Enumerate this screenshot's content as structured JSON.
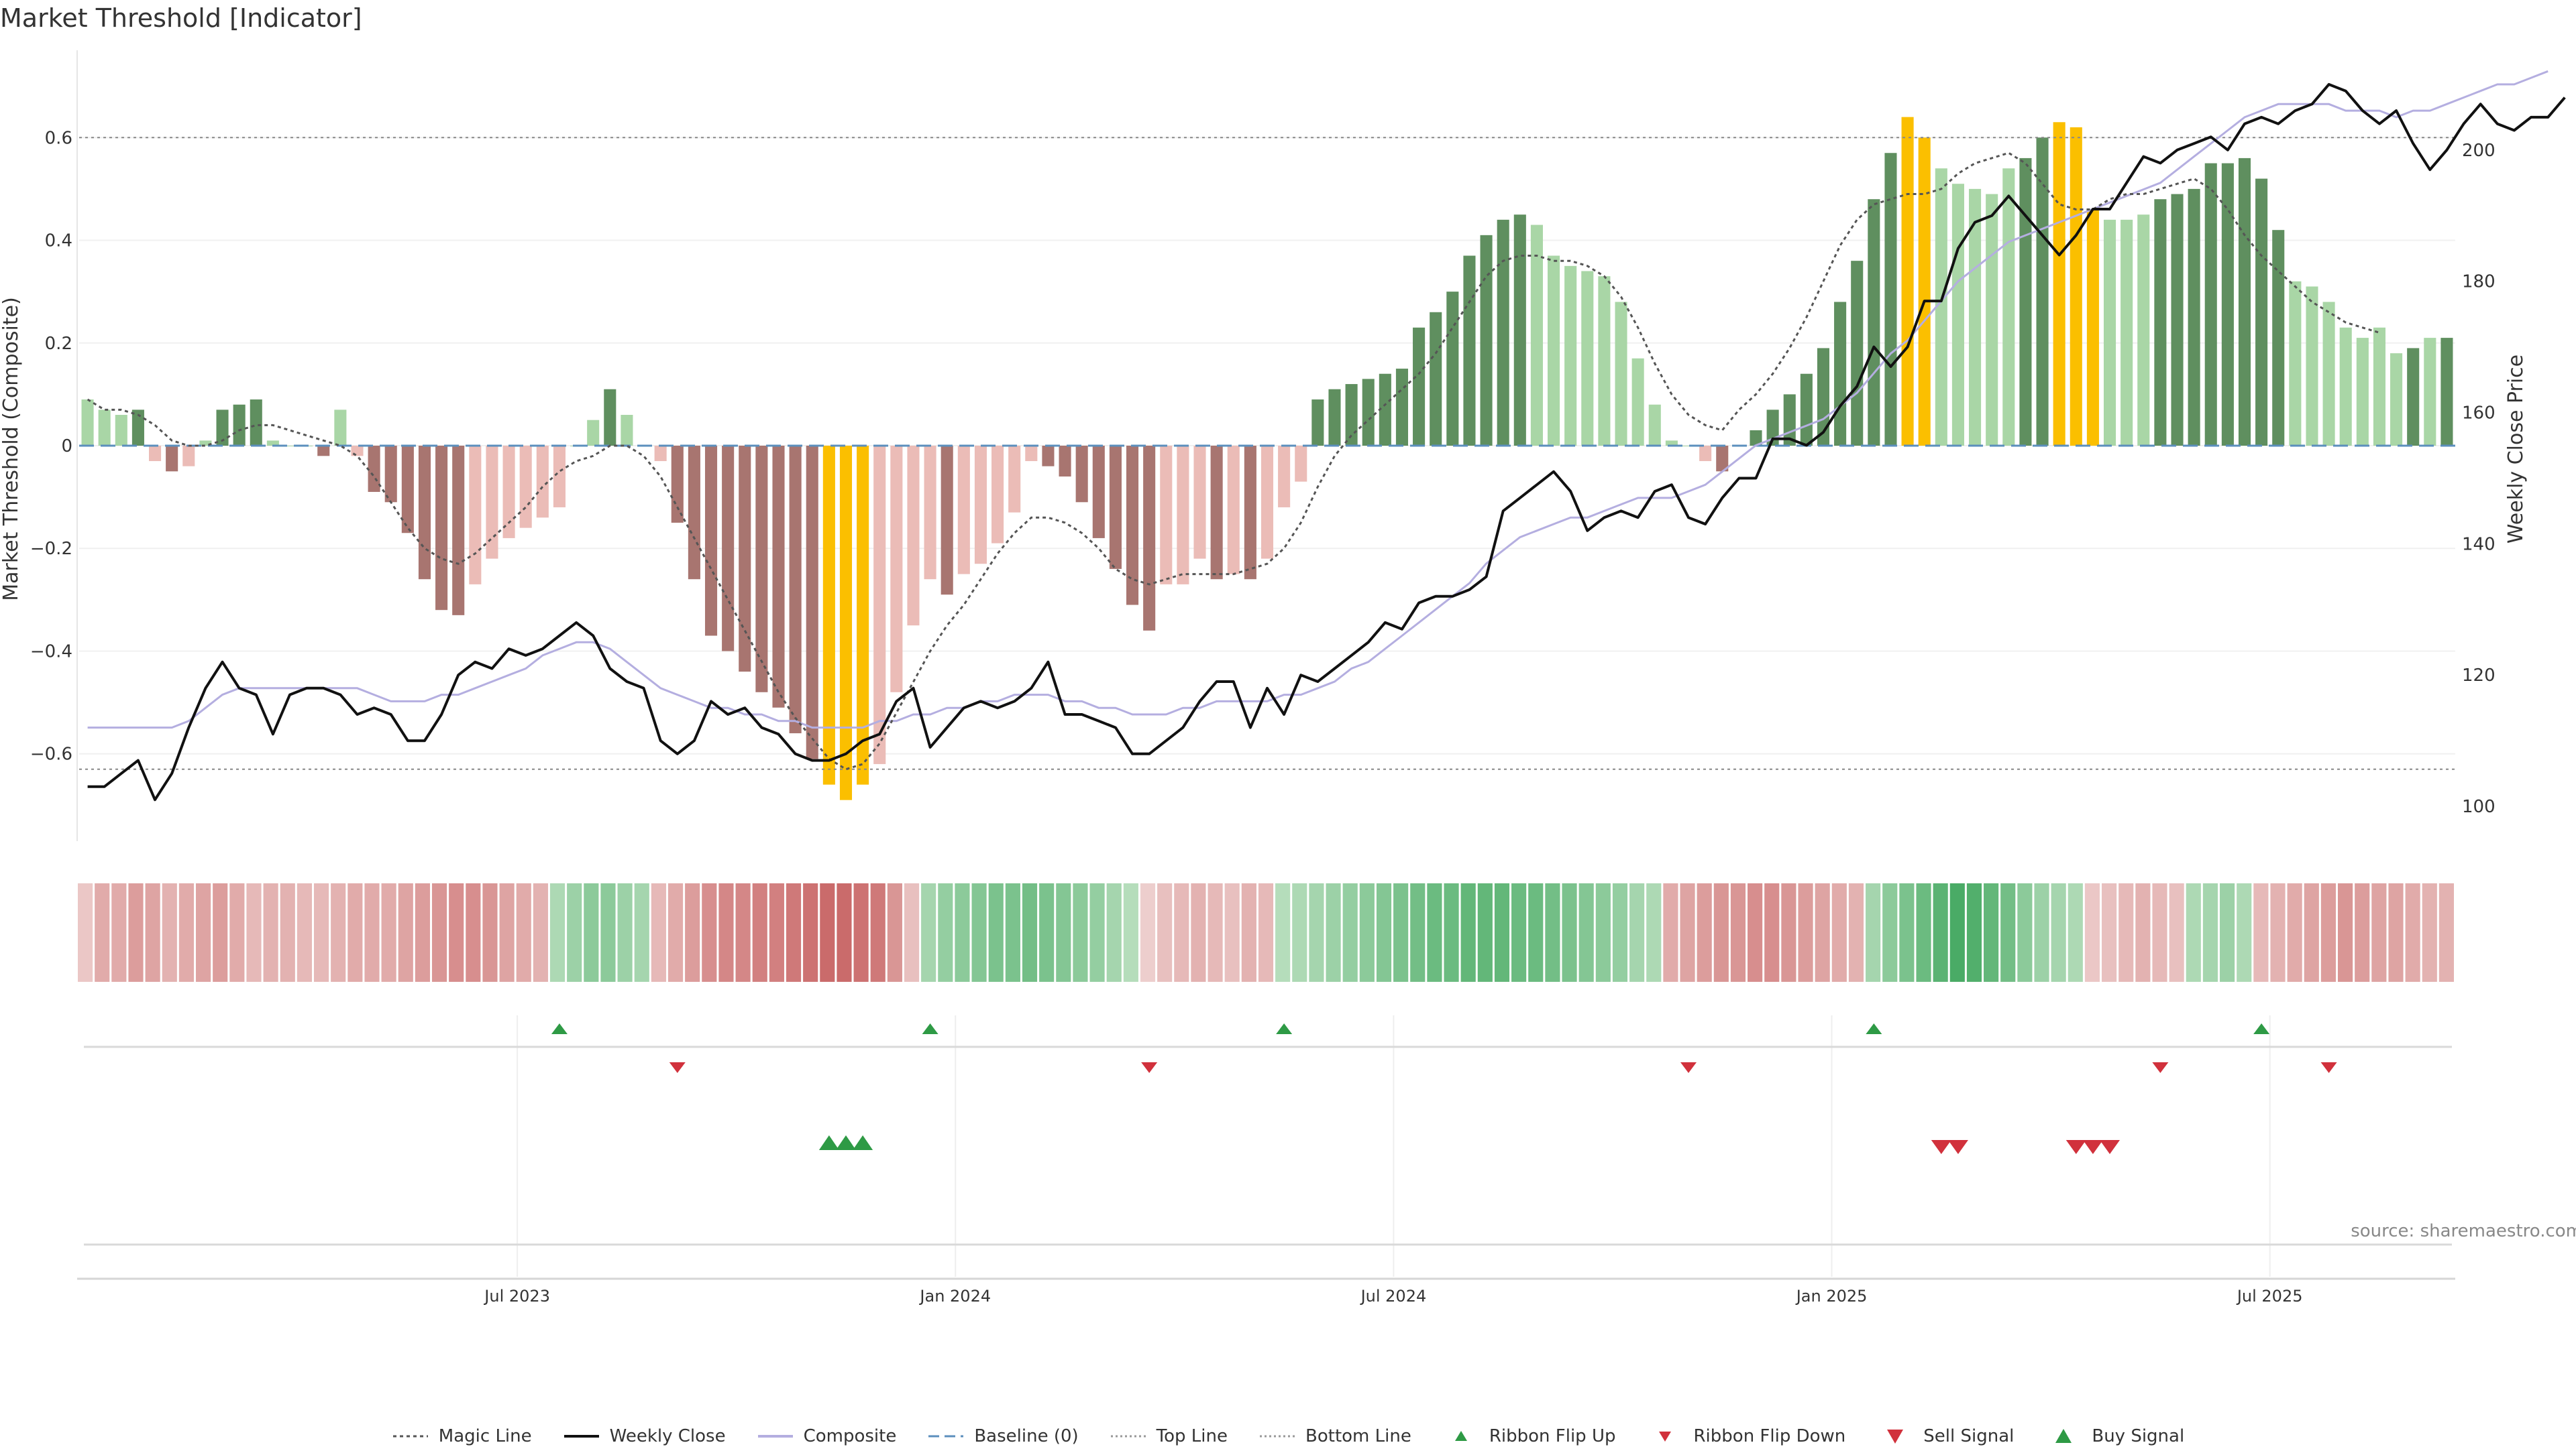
{
  "title": "Market Threshold [Indicator]",
  "source": "source: sharemaestro.com",
  "legend": {
    "magic": "Magic Line",
    "close": "Weekly Close",
    "composite": "Composite",
    "baseline": "Baseline (0)",
    "top": "Top Line",
    "bottom": "Bottom Line",
    "flip_up": "Ribbon Flip Up",
    "flip_down": "Ribbon Flip Down",
    "sell": "Sell Signal",
    "buy": "Buy Signal"
  },
  "colors": {
    "dark_green": "#5f8f5f",
    "light_green": "#a9d6a6",
    "dark_red": "#a87570",
    "light_red": "#ebbcb7",
    "yellow": "#fbbf00",
    "magic": "#555555",
    "close": "#111111",
    "composite": "#b4aee0",
    "baseline": "#5b8fbd",
    "up_marker": "#2e9a45",
    "down_marker": "#d1313c"
  },
  "chart_data": {
    "type": "bar",
    "title": "Market Threshold [Indicator]",
    "ylabel": "Market Threshold (Composite)",
    "y2label": "Weekly Close Price",
    "ylim": [
      -0.77,
      0.77
    ],
    "y2lim": [
      94.7,
      215.2
    ],
    "yticks": [
      "0.6",
      "0.4",
      "0.2",
      "0",
      "−0.2",
      "−0.4",
      "−0.6"
    ],
    "y2ticks": [
      "200",
      "180",
      "160",
      "140",
      "120",
      "100"
    ],
    "xticks": [
      "Jul 2023",
      "Jan 2024",
      "Jul 2024",
      "Jan 2025",
      "Jul 2025"
    ],
    "xtick_weeks": [
      26,
      52,
      78,
      104,
      130
    ],
    "top_line": 0.6,
    "bottom_line": -0.63,
    "bar_values": [
      0.09,
      0.07,
      0.06,
      0.07,
      -0.03,
      -0.05,
      -0.04,
      0.01,
      0.07,
      0.08,
      0.09,
      0.01,
      0,
      0,
      -0.02,
      0.07,
      -0.02,
      -0.09,
      -0.11,
      -0.17,
      -0.26,
      -0.32,
      -0.33,
      -0.27,
      -0.22,
      -0.18,
      -0.16,
      -0.14,
      -0.12,
      0,
      0.05,
      0.11,
      0.06,
      0,
      -0.03,
      -0.15,
      -0.26,
      -0.37,
      -0.4,
      -0.44,
      -0.48,
      -0.51,
      -0.56,
      -0.61,
      -0.66,
      -0.69,
      -0.66,
      -0.62,
      -0.48,
      -0.35,
      -0.26,
      -0.29,
      -0.25,
      -0.23,
      -0.19,
      -0.13,
      -0.03,
      -0.04,
      -0.06,
      -0.11,
      -0.18,
      -0.24,
      -0.31,
      -0.36,
      -0.27,
      -0.27,
      -0.22,
      -0.26,
      -0.25,
      -0.26,
      -0.22,
      -0.12,
      -0.07,
      0.09,
      0.11,
      0.12,
      0.13,
      0.14,
      0.15,
      0.23,
      0.26,
      0.3,
      0.37,
      0.41,
      0.44,
      0.45,
      0.43,
      0.37,
      0.35,
      0.34,
      0.33,
      0.28,
      0.17,
      0.08,
      0.01,
      0,
      -0.03,
      -0.05,
      0,
      0.03,
      0.07,
      0.1,
      0.14,
      0.19,
      0.28,
      0.36,
      0.48,
      0.57,
      0.64,
      0.6,
      0.54,
      0.51,
      0.5,
      0.49,
      0.54,
      0.56,
      0.6,
      0.63,
      0.62,
      0.46,
      0.44,
      0.44,
      0.45,
      0.48,
      0.49,
      0.5,
      0.55,
      0.55,
      0.56,
      0.52,
      0.42,
      0.32,
      0.31,
      0.28,
      0.23,
      0.21,
      0.23,
      0.18,
      0.19,
      0.21,
      0.21
    ],
    "bar_colors": [
      "LG",
      "LG",
      "LG",
      "DG",
      "LR",
      "DR",
      "LR",
      "LG",
      "DG",
      "DG",
      "DG",
      "LG",
      "LG",
      "LG",
      "DR",
      "LG",
      "LR",
      "DR",
      "DR",
      "DR",
      "DR",
      "DR",
      "DR",
      "LR",
      "LR",
      "LR",
      "LR",
      "LR",
      "LR",
      "LG",
      "LG",
      "DG",
      "LG",
      "LG",
      "LR",
      "DR",
      "DR",
      "DR",
      "DR",
      "DR",
      "DR",
      "DR",
      "DR",
      "DR",
      "Y",
      "Y",
      "Y",
      "LR",
      "LR",
      "LR",
      "LR",
      "DR",
      "LR",
      "LR",
      "LR",
      "LR",
      "LR",
      "DR",
      "DR",
      "DR",
      "DR",
      "DR",
      "DR",
      "DR",
      "LR",
      "LR",
      "LR",
      "DR",
      "LR",
      "DR",
      "LR",
      "LR",
      "LR",
      "DG",
      "DG",
      "DG",
      "DG",
      "DG",
      "DG",
      "DG",
      "DG",
      "DG",
      "DG",
      "DG",
      "DG",
      "DG",
      "LG",
      "LG",
      "LG",
      "LG",
      "LG",
      "LG",
      "LG",
      "LG",
      "LG",
      "LG",
      "LR",
      "DR",
      "DG",
      "DG",
      "DG",
      "DG",
      "DG",
      "DG",
      "DG",
      "DG",
      "DG",
      "DG",
      "Y",
      "Y",
      "LG",
      "LG",
      "LG",
      "LG",
      "LG",
      "DG",
      "DG",
      "Y",
      "Y",
      "Y",
      "LG",
      "LG",
      "LG",
      "DG",
      "DG",
      "DG",
      "DG",
      "DG",
      "DG",
      "DG",
      "DG",
      "LG",
      "LG",
      "LG",
      "LG",
      "LG",
      "LG",
      "LG",
      "DG",
      "LG",
      "DG",
      "DG",
      "DG"
    ],
    "magic_line": [
      0.09,
      0.07,
      0.07,
      0.06,
      0.04,
      0.01,
      0,
      0,
      0.01,
      0.03,
      0.04,
      0.04,
      0.03,
      0.02,
      0.01,
      0,
      -0.02,
      -0.06,
      -0.11,
      -0.16,
      -0.2,
      -0.22,
      -0.23,
      -0.21,
      -0.18,
      -0.15,
      -0.12,
      -0.08,
      -0.05,
      -0.03,
      -0.02,
      0,
      0,
      -0.02,
      -0.06,
      -0.12,
      -0.18,
      -0.24,
      -0.3,
      -0.36,
      -0.42,
      -0.48,
      -0.53,
      -0.57,
      -0.61,
      -0.63,
      -0.62,
      -0.58,
      -0.52,
      -0.46,
      -0.4,
      -0.35,
      -0.31,
      -0.26,
      -0.21,
      -0.17,
      -0.14,
      -0.14,
      -0.15,
      -0.17,
      -0.2,
      -0.24,
      -0.26,
      -0.27,
      -0.26,
      -0.25,
      -0.25,
      -0.25,
      -0.25,
      -0.24,
      -0.23,
      -0.2,
      -0.15,
      -0.08,
      -0.02,
      0.02,
      0.05,
      0.08,
      0.11,
      0.14,
      0.18,
      0.23,
      0.28,
      0.33,
      0.36,
      0.37,
      0.37,
      0.36,
      0.36,
      0.35,
      0.33,
      0.29,
      0.23,
      0.16,
      0.1,
      0.06,
      0.04,
      0.03,
      0.07,
      0.1,
      0.14,
      0.19,
      0.25,
      0.32,
      0.39,
      0.44,
      0.47,
      0.48,
      0.49,
      0.49,
      0.5,
      0.53,
      0.55,
      0.56,
      0.57,
      0.55,
      0.51,
      0.47,
      0.46,
      0.46,
      0.48,
      0.49,
      0.49,
      0.5,
      0.51,
      0.52,
      0.5,
      0.46,
      0.41,
      0.37,
      0.34,
      0.31,
      0.28,
      0.26,
      0.24,
      0.23,
      0.22
    ],
    "weekly_close": [
      103,
      103,
      105,
      107,
      101,
      105,
      112,
      118,
      122,
      118,
      117,
      111,
      117,
      118,
      118,
      117,
      114,
      115,
      114,
      110,
      110,
      114,
      120,
      122,
      121,
      124,
      123,
      124,
      126,
      128,
      126,
      121,
      119,
      118,
      110,
      108,
      110,
      116,
      114,
      115,
      112,
      111,
      108,
      107,
      107,
      108,
      110,
      111,
      116,
      118,
      109,
      112,
      115,
      116,
      115,
      116,
      118,
      122,
      114,
      114,
      113,
      112,
      108,
      108,
      110,
      112,
      116,
      119,
      119,
      112,
      118,
      114,
      120,
      119,
      121,
      123,
      125,
      128,
      127,
      131,
      132,
      132,
      133,
      135,
      145,
      147,
      149,
      151,
      148,
      142,
      144,
      145,
      144,
      148,
      149,
      144,
      143,
      147,
      150,
      150,
      156,
      156,
      155,
      157,
      161,
      164,
      170,
      167,
      170,
      177,
      177,
      185,
      189,
      190,
      193,
      190,
      187,
      184,
      187,
      191,
      191,
      195,
      199,
      198,
      200,
      201,
      202,
      200,
      204,
      205,
      204,
      206,
      207,
      210,
      209,
      206,
      204,
      206,
      201,
      197,
      200,
      204,
      207,
      204,
      203,
      205,
      205,
      208
    ],
    "composite_line": [
      112,
      112,
      112,
      112,
      112,
      112,
      113,
      115,
      117,
      118,
      118,
      118,
      118,
      118,
      118,
      118,
      118,
      117,
      116,
      116,
      116,
      117,
      117,
      118,
      119,
      120,
      121,
      123,
      124,
      125,
      125,
      124,
      122,
      120,
      118,
      117,
      116,
      115,
      115,
      114,
      114,
      113,
      113,
      112,
      112,
      112,
      112,
      113,
      113,
      114,
      114,
      115,
      115,
      116,
      116,
      117,
      117,
      117,
      116,
      116,
      115,
      115,
      114,
      114,
      114,
      115,
      115,
      116,
      116,
      116,
      116,
      117,
      117,
      118,
      119,
      121,
      122,
      124,
      126,
      128,
      130,
      132,
      134,
      137,
      139,
      141,
      142,
      143,
      144,
      144,
      145,
      146,
      147,
      147,
      147,
      148,
      149,
      151,
      153,
      155,
      156,
      157,
      158,
      159,
      161,
      163,
      166,
      169,
      171,
      174,
      177,
      180,
      182,
      184,
      186,
      187,
      188,
      189,
      190,
      191,
      192,
      193,
      194,
      195,
      197,
      199,
      201,
      203,
      205,
      206,
      207,
      207,
      207,
      207,
      206,
      206,
      206,
      205,
      206,
      206,
      207,
      208,
      209,
      210,
      210,
      211,
      212
    ],
    "flip_up_weeks": [
      28,
      50,
      71,
      106,
      129
    ],
    "flip_down_weeks": [
      35,
      63,
      95,
      123,
      133
    ],
    "buy_signal_weeks": [
      44,
      45,
      46
    ],
    "sell_signal_weeks": [
      110,
      111,
      118,
      119,
      120
    ],
    "ribbon_intensity": [
      0.15,
      0.35,
      0.35,
      0.45,
      0.4,
      0.3,
      0.35,
      0.4,
      0.45,
      0.35,
      0.25,
      0.3,
      0.3,
      0.25,
      0.25,
      0.3,
      0.35,
      0.35,
      0.35,
      0.4,
      0.45,
      0.5,
      0.55,
      0.55,
      0.5,
      0.4,
      0.35,
      0.3,
      -0.25,
      -0.35,
      -0.45,
      -0.45,
      -0.35,
      -0.3,
      0.25,
      0.35,
      0.45,
      0.55,
      0.6,
      0.6,
      0.65,
      0.65,
      0.7,
      0.75,
      0.8,
      0.8,
      0.75,
      0.7,
      0.5,
      0.2,
      -0.3,
      -0.4,
      -0.45,
      -0.5,
      -0.55,
      -0.55,
      -0.6,
      -0.55,
      -0.5,
      -0.45,
      -0.4,
      -0.3,
      -0.2,
      0.1,
      0.2,
      0.25,
      0.3,
      0.25,
      0.2,
      0.3,
      0.25,
      -0.2,
      -0.25,
      -0.3,
      -0.35,
      -0.4,
      -0.45,
      -0.5,
      -0.55,
      -0.6,
      -0.65,
      -0.65,
      -0.7,
      -0.7,
      -0.7,
      -0.65,
      -0.65,
      -0.6,
      -0.55,
      -0.5,
      -0.45,
      -0.4,
      -0.3,
      -0.25,
      0.35,
      0.4,
      0.45,
      0.5,
      0.5,
      0.55,
      0.55,
      0.5,
      0.45,
      0.4,
      0.35,
      0.3,
      -0.3,
      -0.45,
      -0.55,
      -0.65,
      -0.75,
      -0.85,
      -0.8,
      -0.7,
      -0.6,
      -0.45,
      -0.35,
      -0.3,
      -0.25,
      0.15,
      0.2,
      0.25,
      0.3,
      0.25,
      0.2,
      -0.25,
      -0.3,
      -0.35,
      -0.25,
      0.25,
      0.3,
      0.35,
      0.4,
      0.45,
      0.5,
      0.45,
      0.4,
      0.4,
      0.35,
      0.3,
      0.3
    ]
  }
}
